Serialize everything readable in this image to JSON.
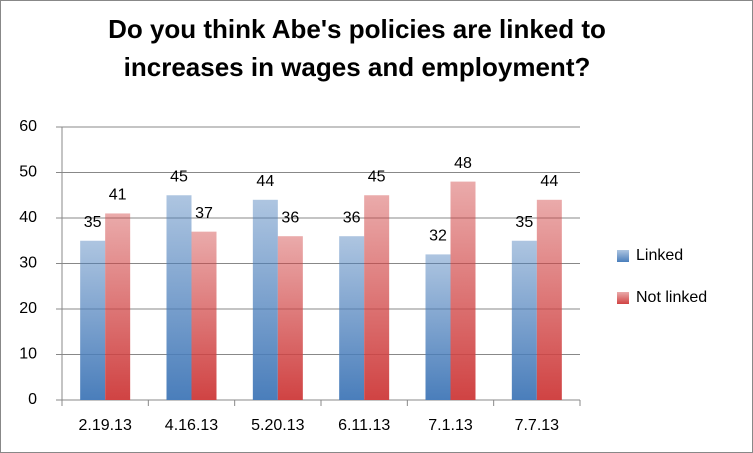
{
  "chart_data": {
    "type": "bar",
    "title": "Do you think Abe's policies are linked to increases in wages and employment?",
    "categories": [
      "2.19.13",
      "4.16.13",
      "5.20.13",
      "6.11.13",
      "7.1.13",
      "7.7.13"
    ],
    "series": [
      {
        "name": "Linked",
        "color": "#4a7ebb",
        "values": [
          35,
          45,
          44,
          36,
          32,
          35
        ]
      },
      {
        "name": "Not linked",
        "color": "#d04343",
        "values": [
          41,
          37,
          36,
          45,
          48,
          44
        ]
      }
    ],
    "ylim": [
      0,
      60
    ],
    "yticks": [
      0,
      10,
      20,
      30,
      40,
      50,
      60
    ],
    "grid": true,
    "legend": "right"
  }
}
